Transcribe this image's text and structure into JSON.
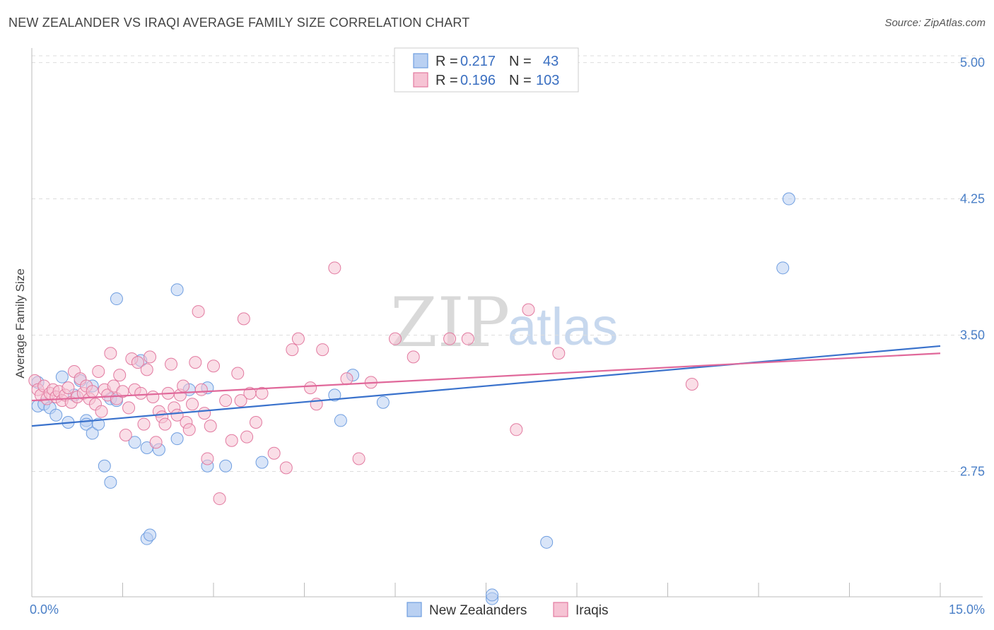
{
  "header": {
    "title": "NEW ZEALANDER VS IRAQI AVERAGE FAMILY SIZE CORRELATION CHART",
    "source": "Source: ZipAtlas.com"
  },
  "legend_top": {
    "series": [
      {
        "r_label": "R = ",
        "r_value": "0.217",
        "n_label": "N = ",
        "n_value": "43"
      },
      {
        "r_label": "R = ",
        "r_value": "0.196",
        "n_label": "N = ",
        "n_value": "103"
      }
    ]
  },
  "watermark": {
    "zip": "ZIP",
    "atlas": "atlas"
  },
  "chart_data": {
    "type": "scatter",
    "title": "NEW ZEALANDER VS IRAQI AVERAGE FAMILY SIZE CORRELATION CHART",
    "xlabel": "",
    "ylabel": "Average Family Size",
    "xlim": [
      0,
      15
    ],
    "ylim": [
      2.06,
      5.08
    ],
    "x_tick_labels": [
      "0.0%",
      "15.0%"
    ],
    "y_ticks": [
      2.75,
      3.5,
      4.25,
      5.0
    ],
    "y_tick_labels": [
      "2.75",
      "3.50",
      "4.25",
      "5.00"
    ],
    "grid": "horizontal dashed",
    "legend_position": "top-center",
    "series": [
      {
        "name": "New Zealanders",
        "color": "#6f9ee0",
        "fill": "#b9d0f2",
        "trend": [
          [
            0,
            3.0
          ],
          [
            15,
            3.44
          ]
        ],
        "points": [
          [
            0.1,
            3.24
          ],
          [
            0.1,
            3.11
          ],
          [
            0.2,
            3.12
          ],
          [
            0.3,
            3.1
          ],
          [
            0.4,
            3.06
          ],
          [
            0.5,
            3.27
          ],
          [
            0.6,
            3.02
          ],
          [
            0.7,
            3.17
          ],
          [
            0.8,
            3.25
          ],
          [
            0.9,
            3.03
          ],
          [
            0.9,
            3.01
          ],
          [
            1.0,
            2.96
          ],
          [
            1.0,
            3.22
          ],
          [
            1.1,
            3.01
          ],
          [
            1.2,
            2.78
          ],
          [
            1.3,
            3.15
          ],
          [
            1.3,
            2.69
          ],
          [
            1.4,
            3.7
          ],
          [
            1.4,
            3.14
          ],
          [
            1.7,
            2.91
          ],
          [
            1.8,
            3.36
          ],
          [
            1.9,
            2.38
          ],
          [
            1.95,
            2.4
          ],
          [
            1.9,
            2.88
          ],
          [
            2.1,
            2.87
          ],
          [
            2.4,
            3.75
          ],
          [
            2.4,
            2.93
          ],
          [
            2.6,
            3.2
          ],
          [
            2.9,
            2.78
          ],
          [
            2.9,
            3.21
          ],
          [
            3.2,
            2.78
          ],
          [
            3.8,
            2.8
          ],
          [
            5.0,
            3.17
          ],
          [
            5.1,
            3.03
          ],
          [
            5.3,
            3.28
          ],
          [
            5.8,
            3.13
          ],
          [
            7.6,
            2.05
          ],
          [
            7.6,
            2.07
          ],
          [
            8.5,
            2.36
          ],
          [
            12.4,
            3.87
          ],
          [
            12.5,
            4.25
          ]
        ]
      },
      {
        "name": "Iraqis",
        "color": "#e27aa0",
        "fill": "#f6c3d4",
        "trend": [
          [
            0,
            3.14
          ],
          [
            15,
            3.4
          ]
        ],
        "points": [
          [
            0.05,
            3.25
          ],
          [
            0.1,
            3.2
          ],
          [
            0.15,
            3.17
          ],
          [
            0.2,
            3.22
          ],
          [
            0.25,
            3.15
          ],
          [
            0.3,
            3.18
          ],
          [
            0.35,
            3.2
          ],
          [
            0.4,
            3.16
          ],
          [
            0.45,
            3.19
          ],
          [
            0.5,
            3.14
          ],
          [
            0.55,
            3.17
          ],
          [
            0.6,
            3.21
          ],
          [
            0.65,
            3.13
          ],
          [
            0.7,
            3.3
          ],
          [
            0.75,
            3.16
          ],
          [
            0.8,
            3.26
          ],
          [
            0.85,
            3.18
          ],
          [
            0.9,
            3.22
          ],
          [
            0.95,
            3.15
          ],
          [
            1.0,
            3.19
          ],
          [
            1.05,
            3.12
          ],
          [
            1.1,
            3.3
          ],
          [
            1.15,
            3.08
          ],
          [
            1.2,
            3.2
          ],
          [
            1.25,
            3.17
          ],
          [
            1.3,
            3.4
          ],
          [
            1.35,
            3.22
          ],
          [
            1.4,
            3.15
          ],
          [
            1.45,
            3.28
          ],
          [
            1.5,
            3.19
          ],
          [
            1.55,
            2.95
          ],
          [
            1.6,
            3.1
          ],
          [
            1.65,
            3.37
          ],
          [
            1.7,
            3.2
          ],
          [
            1.75,
            3.35
          ],
          [
            1.8,
            3.18
          ],
          [
            1.85,
            3.01
          ],
          [
            1.9,
            3.31
          ],
          [
            1.95,
            3.38
          ],
          [
            2.0,
            3.16
          ],
          [
            2.05,
            2.91
          ],
          [
            2.1,
            3.08
          ],
          [
            2.15,
            3.05
          ],
          [
            2.2,
            3.01
          ],
          [
            2.25,
            3.18
          ],
          [
            2.3,
            3.34
          ],
          [
            2.35,
            3.1
          ],
          [
            2.4,
            3.06
          ],
          [
            2.45,
            3.17
          ],
          [
            2.5,
            3.22
          ],
          [
            2.55,
            3.02
          ],
          [
            2.6,
            2.98
          ],
          [
            2.65,
            3.12
          ],
          [
            2.7,
            3.35
          ],
          [
            2.75,
            3.63
          ],
          [
            2.8,
            3.2
          ],
          [
            2.85,
            3.07
          ],
          [
            2.9,
            2.82
          ],
          [
            2.95,
            3.0
          ],
          [
            3.0,
            3.33
          ],
          [
            3.1,
            2.6
          ],
          [
            3.2,
            3.14
          ],
          [
            3.3,
            2.92
          ],
          [
            3.4,
            3.29
          ],
          [
            3.45,
            3.14
          ],
          [
            3.5,
            3.59
          ],
          [
            3.55,
            2.94
          ],
          [
            3.6,
            3.18
          ],
          [
            3.7,
            3.02
          ],
          [
            3.8,
            3.18
          ],
          [
            4.0,
            2.85
          ],
          [
            4.2,
            2.77
          ],
          [
            4.3,
            3.42
          ],
          [
            4.4,
            3.48
          ],
          [
            4.6,
            3.21
          ],
          [
            4.7,
            3.12
          ],
          [
            4.8,
            3.42
          ],
          [
            5.0,
            3.87
          ],
          [
            5.2,
            3.26
          ],
          [
            5.4,
            2.82
          ],
          [
            5.6,
            3.24
          ],
          [
            6.0,
            3.48
          ],
          [
            6.3,
            3.38
          ],
          [
            6.9,
            3.48
          ],
          [
            7.2,
            3.48
          ],
          [
            8.0,
            2.98
          ],
          [
            8.2,
            3.64
          ],
          [
            8.7,
            3.4
          ],
          [
            10.9,
            3.23
          ]
        ]
      }
    ]
  }
}
